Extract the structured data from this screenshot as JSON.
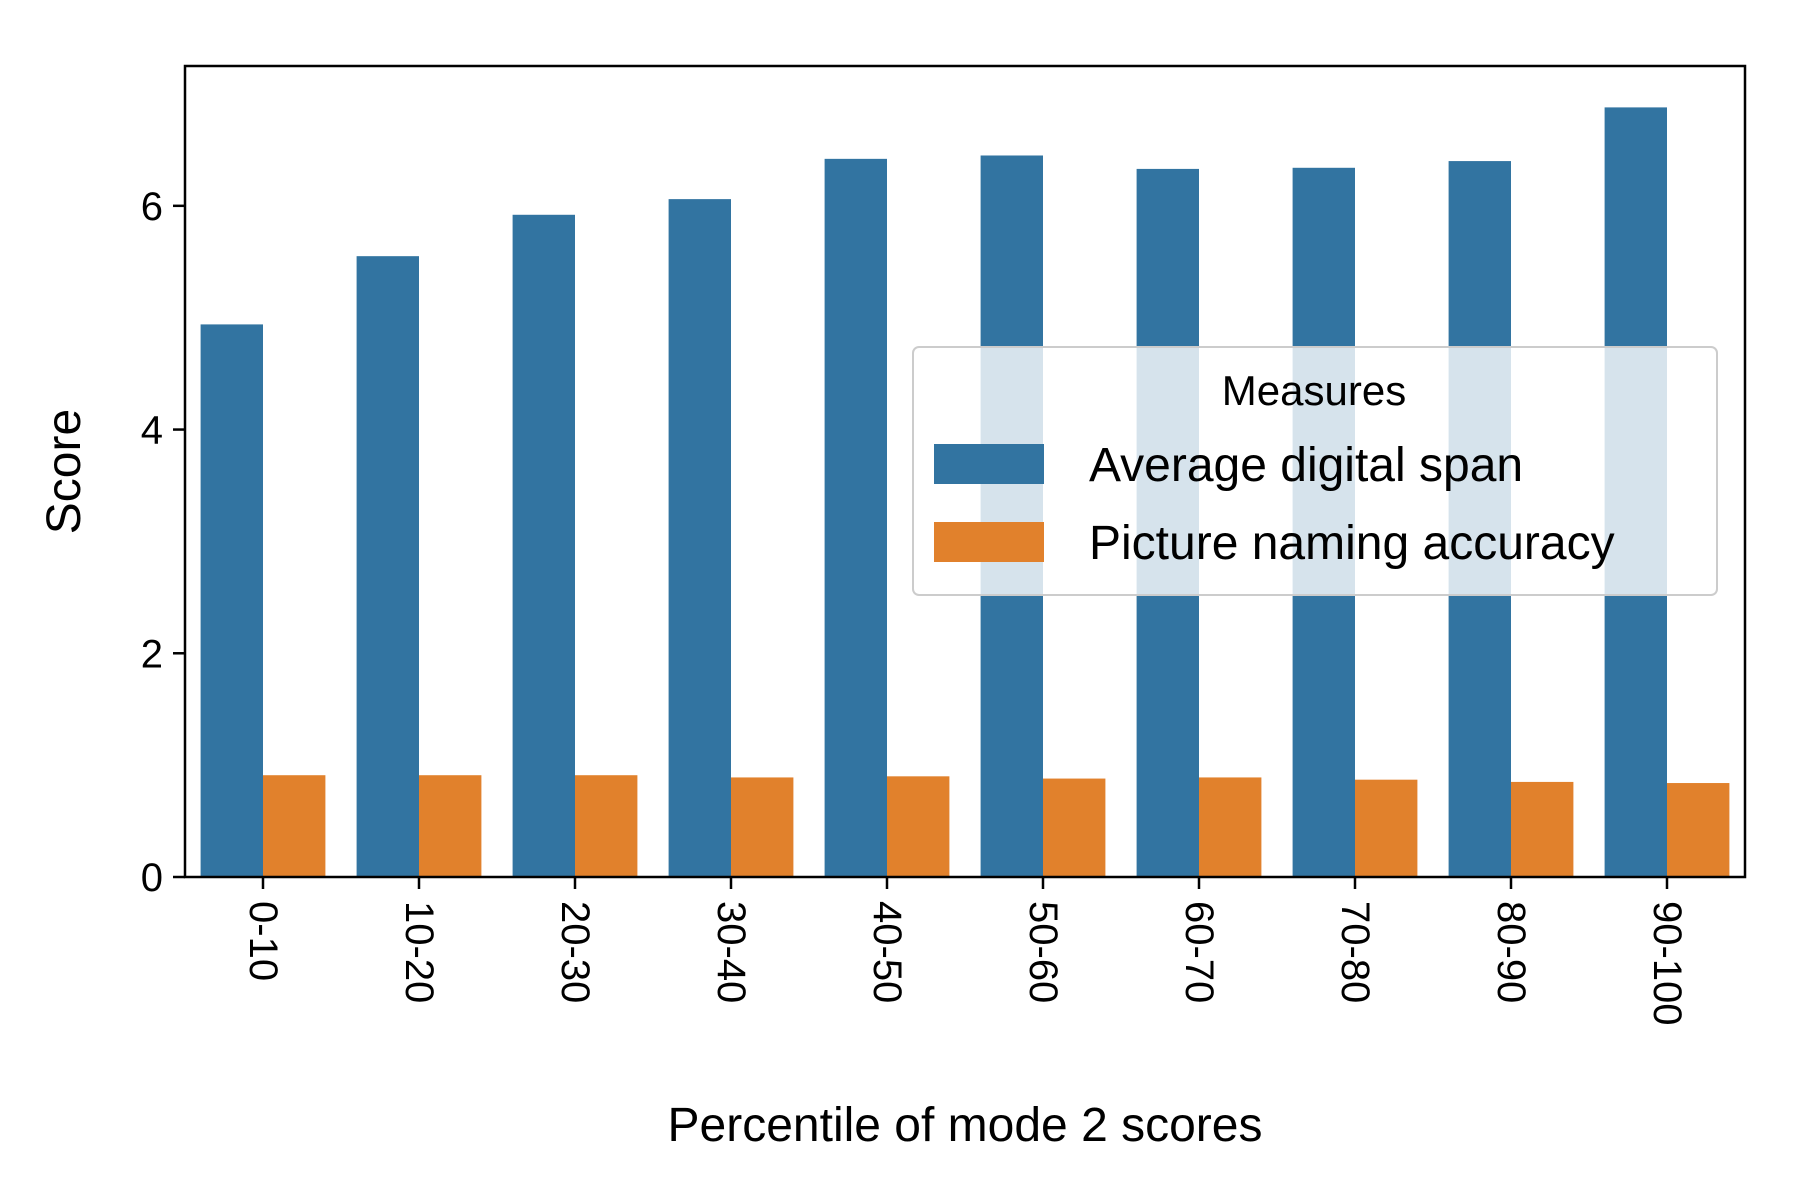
{
  "chart_data": {
    "type": "bar",
    "title": "",
    "xlabel": "Percentile of mode 2 scores",
    "ylabel": "Score",
    "categories": [
      "0-10",
      "10-20",
      "20-30",
      "30-40",
      "40-50",
      "50-60",
      "60-70",
      "70-80",
      "80-90",
      "90-100"
    ],
    "series": [
      {
        "name": "Average digital span",
        "color": "#3274a1",
        "values": [
          4.94,
          5.55,
          5.92,
          6.06,
          6.42,
          6.45,
          6.33,
          6.34,
          6.4,
          6.88
        ]
      },
      {
        "name": "Picture naming accuracy",
        "color": "#e1812c",
        "values": [
          0.91,
          0.91,
          0.91,
          0.89,
          0.9,
          0.88,
          0.89,
          0.87,
          0.85,
          0.84
        ]
      }
    ],
    "ylim": [
      0,
      7.25
    ],
    "yticks": [
      0,
      2,
      4,
      6
    ],
    "ytick_labels": [
      "0",
      "2",
      "4",
      "6"
    ],
    "xtick_rotation": "vertical",
    "legend": {
      "title": "Measures",
      "placement": "center-right"
    },
    "grid": false
  }
}
